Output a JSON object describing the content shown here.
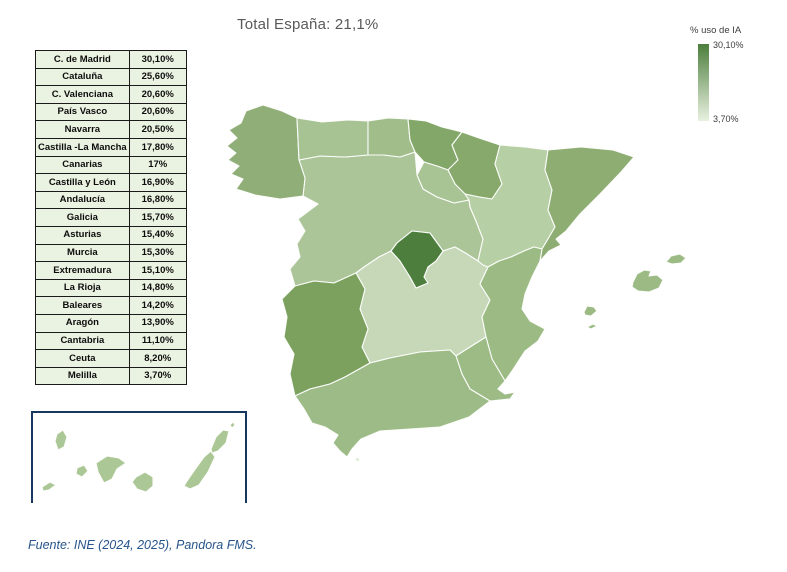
{
  "title": "Total España: 21,1%",
  "legend": {
    "title": "% uso de IA",
    "max_label": "30,10%",
    "min_label": "3,70%"
  },
  "source": "Fuente: INE (2024, 2025), Pandora FMS.",
  "table": {
    "rows": [
      {
        "region": "C. de Madrid",
        "value": "30,10%"
      },
      {
        "region": "Cataluña",
        "value": "25,60%"
      },
      {
        "region": "C. Valenciana",
        "value": "20,60%"
      },
      {
        "region": "País Vasco",
        "value": "20,60%"
      },
      {
        "region": "Navarra",
        "value": "20,50%"
      },
      {
        "region": "Castilla -La Mancha",
        "value": "17,80%"
      },
      {
        "region": "Canarias",
        "value": "17%"
      },
      {
        "region": "Castilla y León",
        "value": "16,90%"
      },
      {
        "region": "Andalucía",
        "value": "16,80%"
      },
      {
        "region": "Galicia",
        "value": "15,70%"
      },
      {
        "region": "Asturias",
        "value": "15,40%"
      },
      {
        "region": "Murcia",
        "value": "15,30%"
      },
      {
        "region": "Extremadura",
        "value": "15,10%"
      },
      {
        "region": "La Rioja",
        "value": "14,80%"
      },
      {
        "region": "Baleares",
        "value": "14,20%"
      },
      {
        "region": "Aragón",
        "value": "13,90%"
      },
      {
        "region": "Cantabria",
        "value": "11,10%"
      },
      {
        "region": "Ceuta",
        "value": "8,20%"
      },
      {
        "region": "Melilla",
        "value": "3,70%"
      }
    ]
  },
  "colors": {
    "gradient_top": "#4d7e3d",
    "gradient_bottom": "#e8f1e0",
    "map_stroke": "#fcfdfb",
    "table_bg": "#eaf3e1",
    "table_border": "#1a1a1a",
    "inset_border": "#17375e",
    "title_text": "#595959",
    "source_text": "#26558b",
    "region_fills": {
      "madrid": "#4d7e3d",
      "cataluna": "#8ead73",
      "pais_vasco": "#83a768",
      "navarra": "#87aa6c",
      "extremadura": "#7ca15e",
      "galicia": "#90ae77",
      "valencia": "#9cbb84",
      "murcia": "#9cbb85",
      "andalucia": "#9dbb86",
      "baleares": "#9cbb84",
      "asturias": "#a7c293",
      "cantabria": "#a0bd8a",
      "la_rioja": "#a9c494",
      "castilla_leon": "#abc598",
      "aragon": "#b7cfa4",
      "castilla_mancha": "#c6d8b8",
      "canarias": "#abc795",
      "ceuta": "#dcead2"
    }
  },
  "chart_data": {
    "type": "choropleth",
    "title": "Total España: 21,1%",
    "total_value": 21.1,
    "legend_title": "% uso de IA",
    "value_range": [
      3.7,
      30.1
    ],
    "unit": "%",
    "legend_position": "top-right",
    "source": "Fuente: INE (2024, 2025), Pandora FMS.",
    "regions": [
      {
        "name": "C. de Madrid",
        "value": 30.1
      },
      {
        "name": "Cataluña",
        "value": 25.6
      },
      {
        "name": "C. Valenciana",
        "value": 20.6
      },
      {
        "name": "País Vasco",
        "value": 20.6
      },
      {
        "name": "Navarra",
        "value": 20.5
      },
      {
        "name": "Castilla -La Mancha",
        "value": 17.8
      },
      {
        "name": "Canarias",
        "value": 17.0
      },
      {
        "name": "Castilla y León",
        "value": 16.9
      },
      {
        "name": "Andalucía",
        "value": 16.8
      },
      {
        "name": "Galicia",
        "value": 15.7
      },
      {
        "name": "Asturias",
        "value": 15.4
      },
      {
        "name": "Murcia",
        "value": 15.3
      },
      {
        "name": "Extremadura",
        "value": 15.1
      },
      {
        "name": "La Rioja",
        "value": 14.8
      },
      {
        "name": "Baleares",
        "value": 14.2
      },
      {
        "name": "Aragón",
        "value": 13.9
      },
      {
        "name": "Cantabria",
        "value": 11.1
      },
      {
        "name": "Ceuta",
        "value": 8.2
      },
      {
        "name": "Melilla",
        "value": 3.7
      }
    ]
  }
}
